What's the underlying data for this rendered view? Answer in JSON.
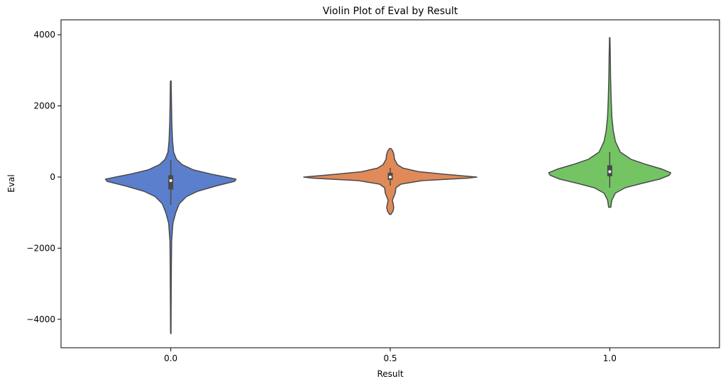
{
  "chart_data": {
    "type": "violin",
    "title": "Violin Plot of Eval by Result",
    "xlabel": "Result",
    "ylabel": "Eval",
    "ylim": [
      -4800,
      4420
    ],
    "yticks": [
      4000,
      2000,
      0,
      -2000,
      -4000
    ],
    "ytick_labels": [
      "4000",
      "2000",
      "0",
      "−2000",
      "−4000"
    ],
    "grid": false,
    "legend": "none",
    "categories": [
      "0.0",
      "0.5",
      "1.0"
    ],
    "series": [
      {
        "category": "0.0",
        "color": "#5b7fcc",
        "min": -4400,
        "max": 2700,
        "q1": -350,
        "median": -100,
        "q3": 50,
        "whisker_low": -780,
        "whisker_high": 480,
        "profile": [
          [
            -4400,
            0.3
          ],
          [
            -3500,
            0.5
          ],
          [
            -2500,
            0.8
          ],
          [
            -1800,
            1.2
          ],
          [
            -1300,
            3
          ],
          [
            -1000,
            7
          ],
          [
            -750,
            12
          ],
          [
            -550,
            22
          ],
          [
            -400,
            38
          ],
          [
            -250,
            64
          ],
          [
            -120,
            90
          ],
          [
            -60,
            92
          ],
          [
            0,
            78
          ],
          [
            80,
            57
          ],
          [
            200,
            32
          ],
          [
            350,
            16
          ],
          [
            500,
            8
          ],
          [
            700,
            4
          ],
          [
            1000,
            2.5
          ],
          [
            1500,
            1.5
          ],
          [
            2000,
            1
          ],
          [
            2700,
            0.5
          ]
        ]
      },
      {
        "category": "0.5",
        "color": "#e08a5a",
        "min": -1050,
        "max": 800,
        "q1": -80,
        "median": 0,
        "q3": 120,
        "whisker_low": -240,
        "whisker_high": 260,
        "profile": [
          [
            -1050,
            1
          ],
          [
            -950,
            4
          ],
          [
            -850,
            5
          ],
          [
            -750,
            4
          ],
          [
            -650,
            3
          ],
          [
            -550,
            5
          ],
          [
            -450,
            7
          ],
          [
            -300,
            8
          ],
          [
            -200,
            15
          ],
          [
            -100,
            45
          ],
          [
            -30,
            110
          ],
          [
            0,
            122
          ],
          [
            30,
            105
          ],
          [
            80,
            75
          ],
          [
            150,
            40
          ],
          [
            250,
            18
          ],
          [
            350,
            10
          ],
          [
            500,
            6
          ],
          [
            650,
            5
          ],
          [
            750,
            3
          ],
          [
            800,
            1
          ]
        ]
      },
      {
        "category": "1.0",
        "color": "#74c464",
        "min": -850,
        "max": 3920,
        "q1": 20,
        "median": 150,
        "q3": 330,
        "whisker_low": -300,
        "whisker_high": 700,
        "profile": [
          [
            -850,
            1.5
          ],
          [
            -650,
            3
          ],
          [
            -450,
            8
          ],
          [
            -300,
            22
          ],
          [
            -180,
            45
          ],
          [
            -60,
            70
          ],
          [
            50,
            84
          ],
          [
            120,
            86
          ],
          [
            220,
            74
          ],
          [
            350,
            52
          ],
          [
            500,
            30
          ],
          [
            700,
            15
          ],
          [
            1000,
            8
          ],
          [
            1300,
            5
          ],
          [
            1700,
            3
          ],
          [
            2200,
            2
          ],
          [
            2800,
            1.2
          ],
          [
            3400,
            0.8
          ],
          [
            3920,
            0.3
          ]
        ]
      }
    ]
  }
}
